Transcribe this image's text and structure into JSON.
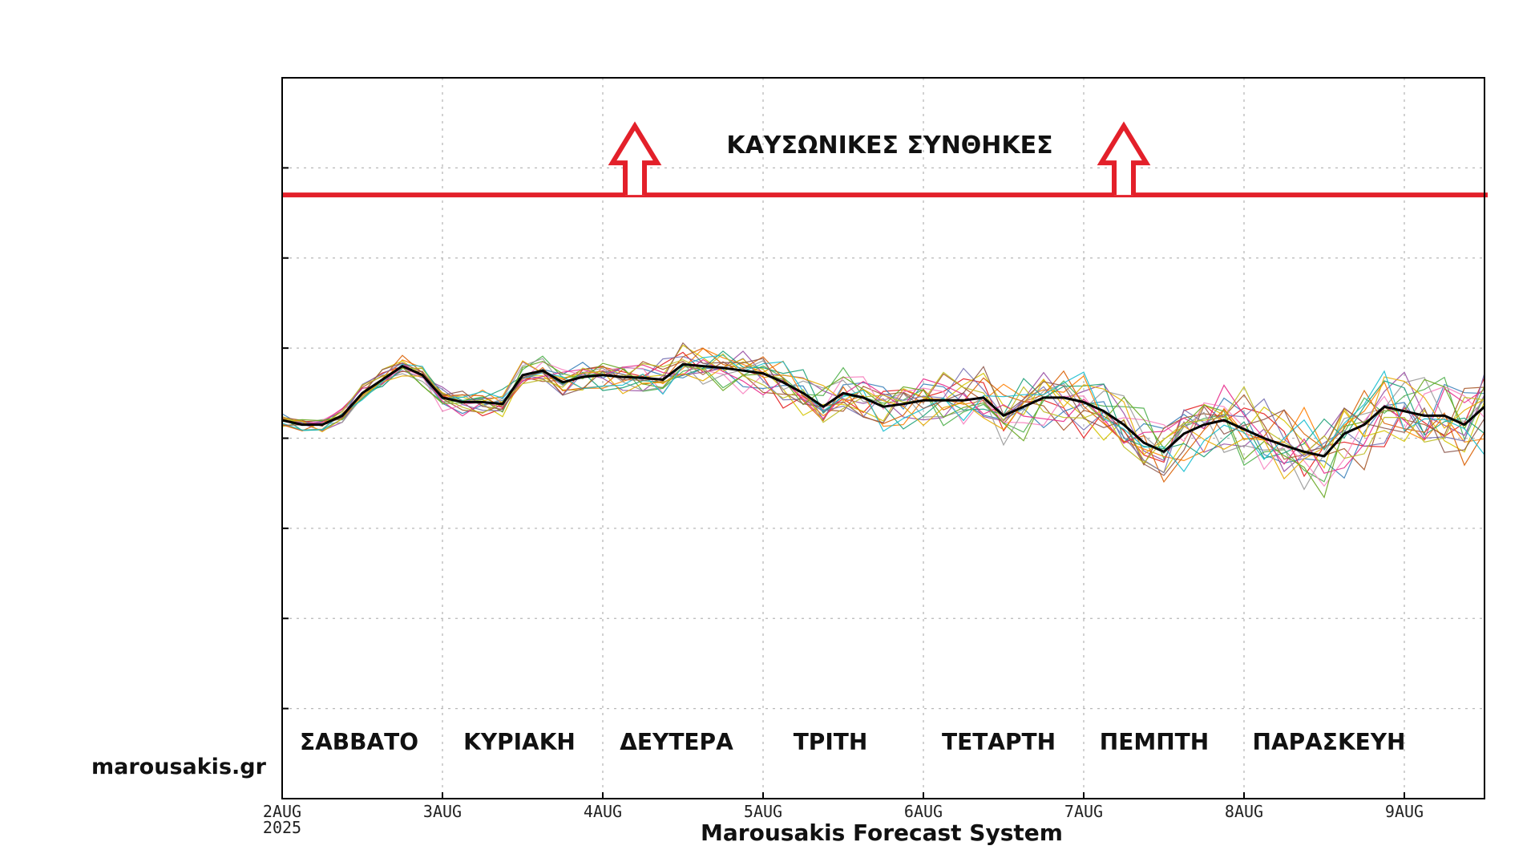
{
  "site": "marousakis.gr",
  "x_axis_title": "Marousakis Forecast System",
  "colors": {
    "threshold": "#e3202a",
    "mean": "#000000",
    "members": [
      "#e41a1c",
      "#377eb8",
      "#4daf4a",
      "#984ea3",
      "#ff7f00",
      "#d4c400",
      "#a65628",
      "#f781bf",
      "#999999",
      "#1b9e77",
      "#d95f02",
      "#7570b3",
      "#e7298a",
      "#66a61e",
      "#e6ab02",
      "#17becf",
      "#8c564b",
      "#bcbd22"
    ]
  },
  "chart_data": {
    "type": "line",
    "title": "",
    "xlabel": "Marousakis Forecast System",
    "ylabel": "",
    "x_ticks": [
      {
        "day": 2,
        "label": "2AUG",
        "sublabel": "2025"
      },
      {
        "day": 3,
        "label": "3AUG"
      },
      {
        "day": 4,
        "label": "4AUG"
      },
      {
        "day": 5,
        "label": "5AUG"
      },
      {
        "day": 6,
        "label": "6AUG"
      },
      {
        "day": 7,
        "label": "7AUG"
      },
      {
        "day": 8,
        "label": "8AUG"
      },
      {
        "day": 9,
        "label": "9AUG"
      }
    ],
    "xlim": [
      2,
      9.5
    ],
    "ylim": [
      0,
      8
    ],
    "y_gridlines": [
      1,
      2,
      3,
      4,
      5,
      6,
      7
    ],
    "grid": true,
    "threshold": {
      "value": 6.7,
      "label": "ΚΑΥΣΩΝΙΚΕΣ ΣΥΝΘΗΚΕΣ",
      "arrow_x": [
        4.2,
        7.25
      ]
    },
    "day_names": [
      {
        "x": 2.48,
        "label": "ΣΑΒΒΑΤΟ"
      },
      {
        "x": 3.48,
        "label": "ΚΥΡΙΑΚΗ"
      },
      {
        "x": 4.46,
        "label": "ΔΕΥΤΕΡΑ"
      },
      {
        "x": 5.42,
        "label": "ΤΡΙΤΗ"
      },
      {
        "x": 6.47,
        "label": "ΤΕΤΑΡΤΗ"
      },
      {
        "x": 7.44,
        "label": "ΠΕΜΠΤΗ"
      },
      {
        "x": 8.53,
        "label": "ΠΑΡΑΣΚΕΥΗ"
      }
    ],
    "mean_series": {
      "x": [
        2.0,
        2.125,
        2.25,
        2.375,
        2.5,
        2.625,
        2.75,
        2.875,
        3.0,
        3.125,
        3.25,
        3.375,
        3.5,
        3.625,
        3.75,
        3.875,
        4.0,
        4.125,
        4.25,
        4.375,
        4.5,
        4.625,
        4.75,
        4.875,
        5.0,
        5.125,
        5.25,
        5.375,
        5.5,
        5.625,
        5.75,
        5.875,
        6.0,
        6.125,
        6.25,
        6.375,
        6.5,
        6.625,
        6.75,
        6.875,
        7.0,
        7.125,
        7.25,
        7.375,
        7.5,
        7.625,
        7.75,
        7.875,
        8.0,
        8.125,
        8.25,
        8.375,
        8.5,
        8.625,
        8.75,
        8.875,
        9.0,
        9.125,
        9.25,
        9.375,
        9.5
      ],
      "y": [
        4.2,
        4.15,
        4.15,
        4.25,
        4.5,
        4.65,
        4.8,
        4.7,
        4.45,
        4.4,
        4.4,
        4.38,
        4.7,
        4.75,
        4.62,
        4.68,
        4.7,
        4.68,
        4.67,
        4.65,
        4.82,
        4.8,
        4.78,
        4.75,
        4.72,
        4.62,
        4.5,
        4.35,
        4.5,
        4.45,
        4.35,
        4.38,
        4.42,
        4.42,
        4.42,
        4.45,
        4.25,
        4.35,
        4.45,
        4.45,
        4.4,
        4.3,
        4.15,
        3.95,
        3.85,
        4.05,
        4.15,
        4.2,
        4.1,
        4.0,
        3.92,
        3.85,
        3.8,
        4.05,
        4.15,
        4.35,
        4.3,
        4.25,
        4.25,
        4.15,
        4.35
      ]
    },
    "member_count": 18
  }
}
